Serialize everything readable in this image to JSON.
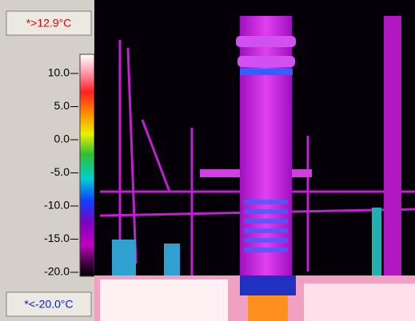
{
  "max_label": "*>12.9°C",
  "min_label": "*<-20.0°C",
  "scale": {
    "ticks": [
      "10.0",
      "5.0",
      "0.0",
      "-5.0",
      "-10.0",
      "-15.0",
      "-20.0"
    ]
  }
}
